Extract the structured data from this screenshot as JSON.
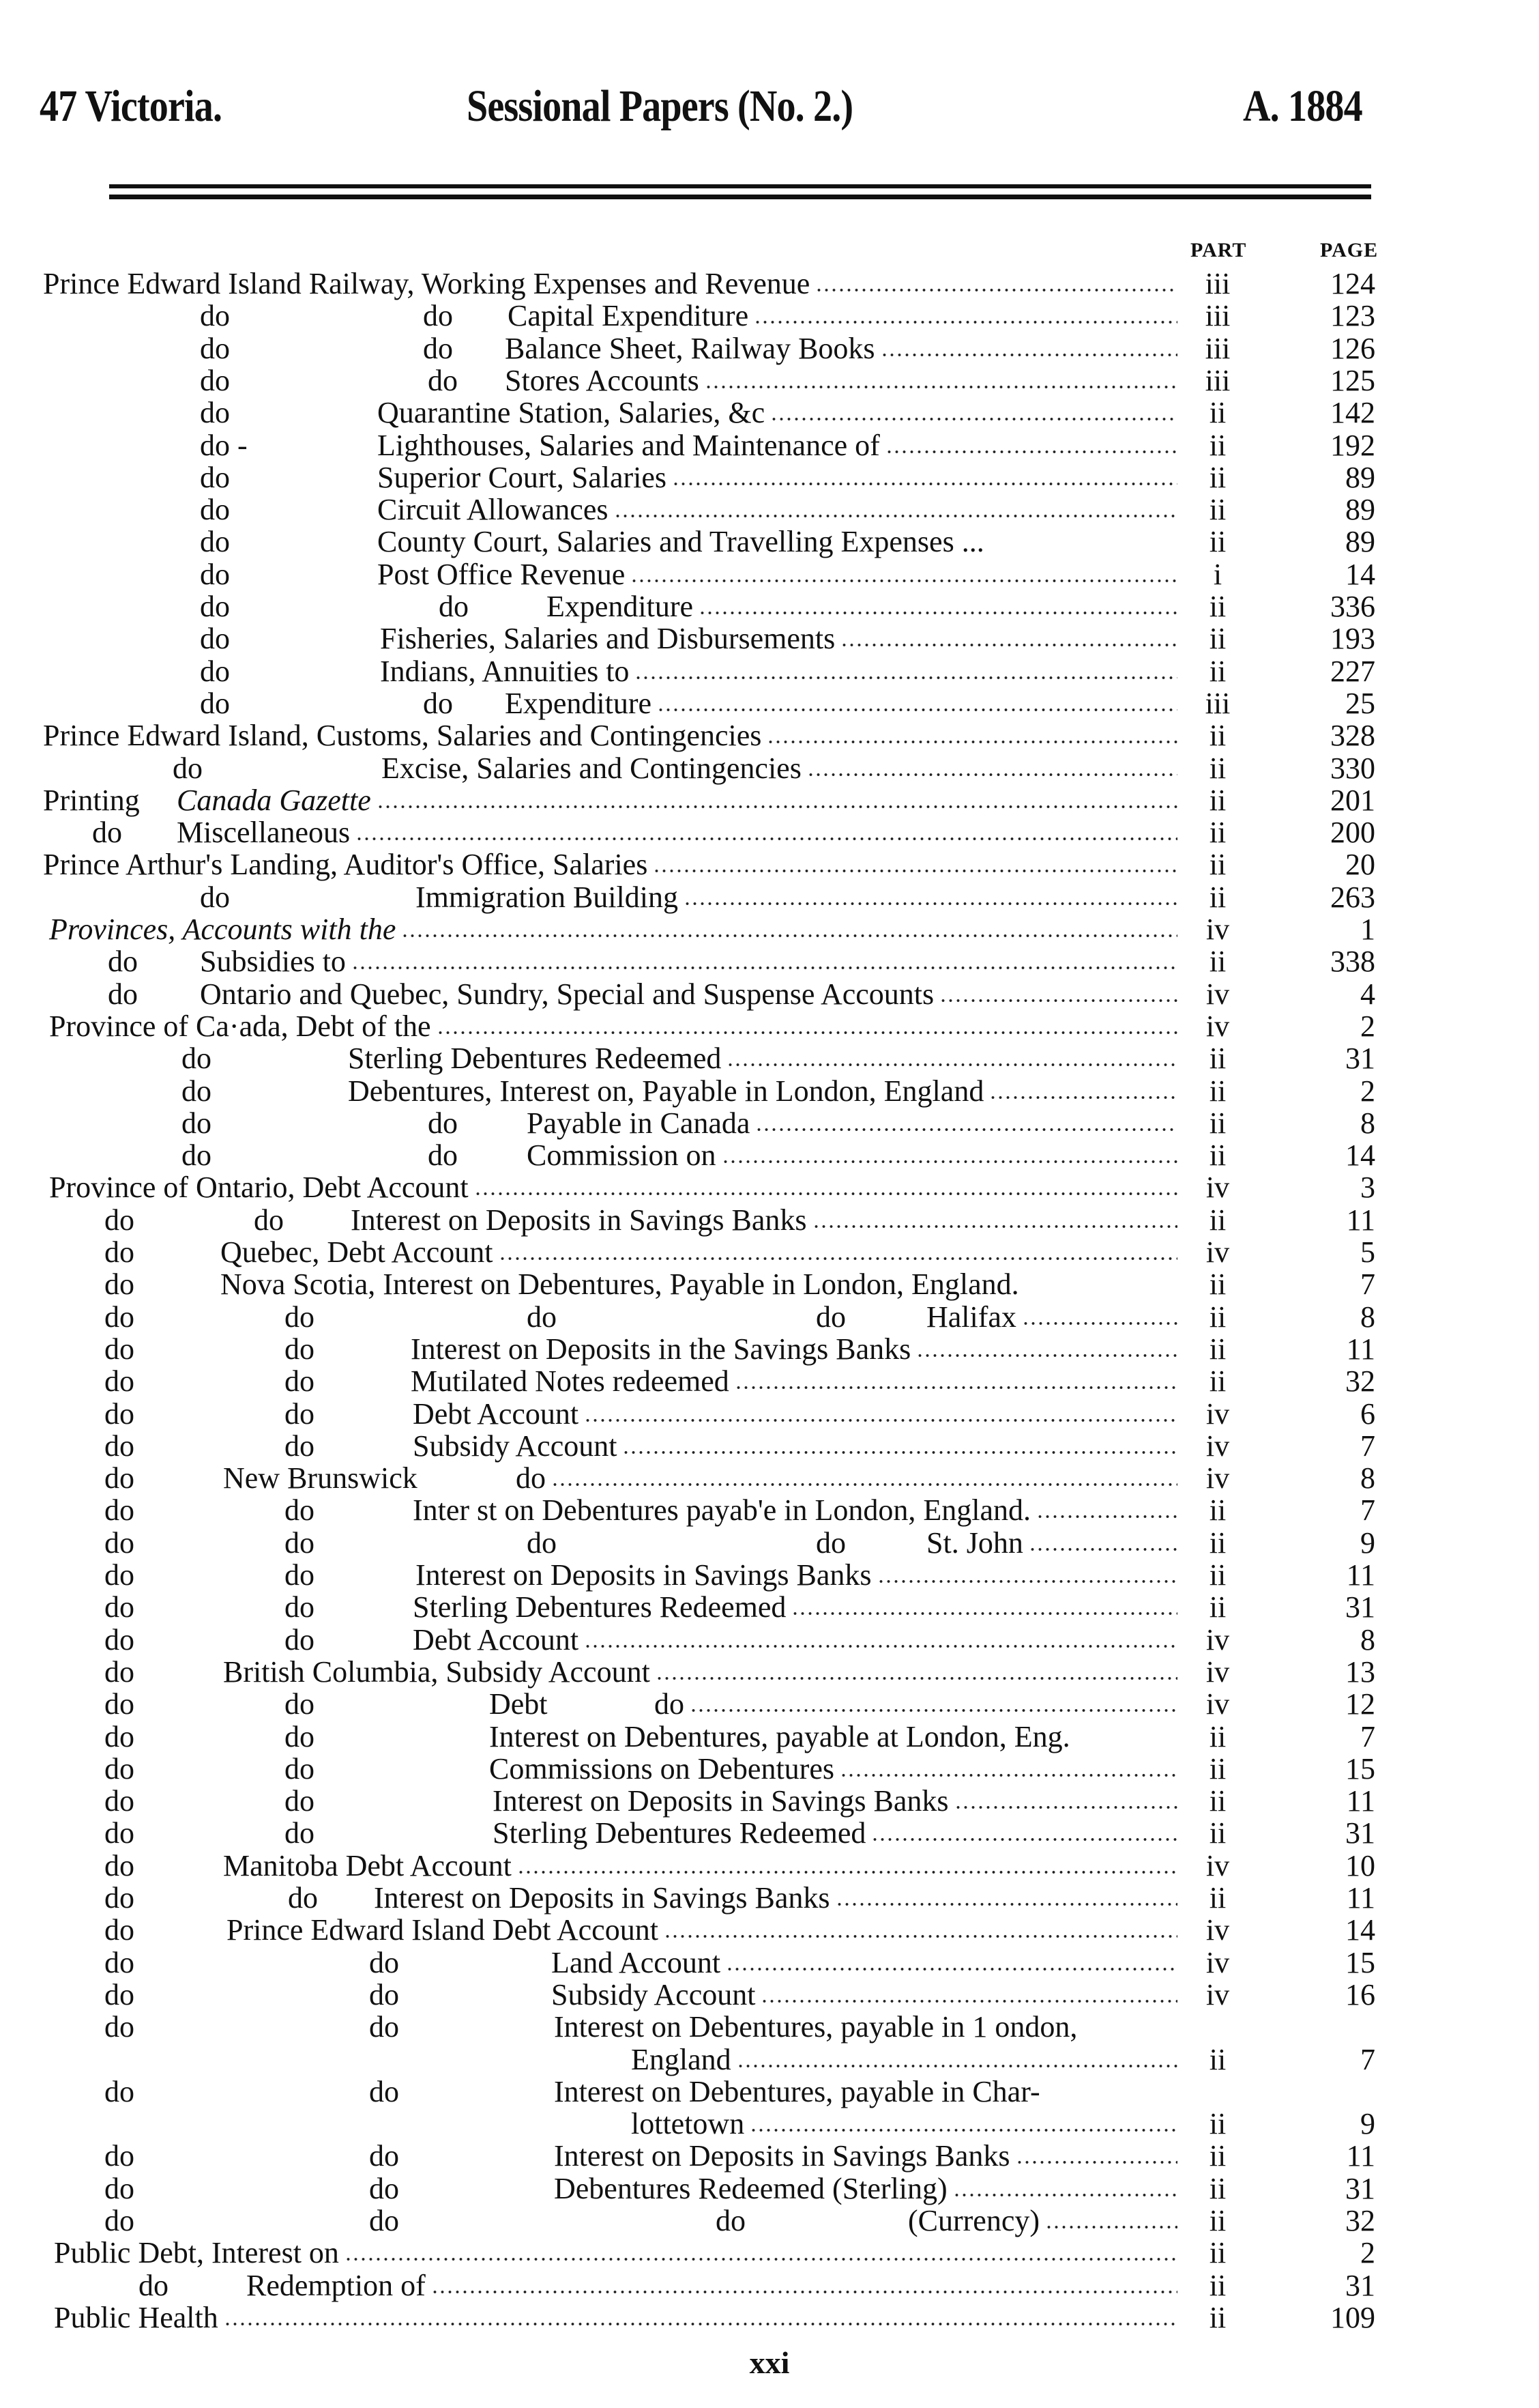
{
  "header": {
    "left": "47 Victoria.",
    "center": "Sessional Papers (No. 2.)",
    "right": "A. 1884"
  },
  "columns": {
    "part": "PART",
    "page": "PAGE"
  },
  "rows": [
    {
      "cols": [
        "Prince Edward Island Railway, Working Expenses and Revenue"
      ],
      "part": "iii",
      "page": "124"
    },
    {
      "cols": [
        "do",
        "do",
        "Capital Expenditure"
      ],
      "part": "iii",
      "page": "123"
    },
    {
      "cols": [
        "do",
        "do",
        "Balance Sheet, Railway Books"
      ],
      "part": "iii",
      "page": "126"
    },
    {
      "cols": [
        "do",
        "do",
        "Stores Accounts"
      ],
      "part": "iii",
      "page": "125"
    },
    {
      "cols": [
        "do",
        "Quarantine Station, Salaries, &c"
      ],
      "part": "ii",
      "page": "142"
    },
    {
      "cols": [
        "do -",
        "Lighthouses, Salaries and Maintenance of"
      ],
      "part": "ii",
      "page": "192"
    },
    {
      "cols": [
        "do",
        "Superior Court, Salaries"
      ],
      "part": "ii",
      "page": "89"
    },
    {
      "cols": [
        "do",
        "Circuit Allowances"
      ],
      "part": "ii",
      "page": "89"
    },
    {
      "cols": [
        "do",
        "County Court, Salaries and Travelling Expenses ..."
      ],
      "part": "ii",
      "page": "89"
    },
    {
      "cols": [
        "do",
        "Post Office Revenue"
      ],
      "part": "i",
      "page": "14"
    },
    {
      "cols": [
        "do",
        "do",
        "Expenditure"
      ],
      "part": "ii",
      "page": "336"
    },
    {
      "cols": [
        "do",
        "Fisheries, Salaries and Disbursements"
      ],
      "part": "ii",
      "page": "193"
    },
    {
      "cols": [
        "do",
        "Indians, Annuities to"
      ],
      "part": "ii",
      "page": "227"
    },
    {
      "cols": [
        "do",
        "do",
        "Expenditure"
      ],
      "part": "iii",
      "page": "25"
    },
    {
      "cols": [
        "Prince Edward Island, Customs, Salaries and Contingencies"
      ],
      "part": "ii",
      "page": "328"
    },
    {
      "cols": [
        "do",
        "Excise, Salaries and Contingencies"
      ],
      "part": "ii",
      "page": "330"
    },
    {
      "cols": [
        "Printing",
        "Canada Gazette"
      ],
      "part": "ii",
      "page": "201"
    },
    {
      "cols": [
        "do",
        "Miscellaneous"
      ],
      "part": "ii",
      "page": "200"
    },
    {
      "cols": [
        "Prince Arthur's Landing, Auditor's Office, Salaries"
      ],
      "part": "ii",
      "page": "20"
    },
    {
      "cols": [
        "do",
        "Immigration Building"
      ],
      "part": "ii",
      "page": "263"
    },
    {
      "cols": [
        "Provinces, Accounts with the"
      ],
      "part": "iv",
      "page": "1"
    },
    {
      "cols": [
        "do",
        "Subsidies to"
      ],
      "part": "ii",
      "page": "338"
    },
    {
      "cols": [
        "do",
        "Ontario and Quebec, Sundry, Special and Suspense Accounts"
      ],
      "part": "iv",
      "page": "4"
    },
    {
      "cols": [
        "Province of Ca·ada, Debt of the"
      ],
      "part": "iv",
      "page": "2"
    },
    {
      "cols": [
        "do",
        "Sterling Debentures Redeemed"
      ],
      "part": "ii",
      "page": "31"
    },
    {
      "cols": [
        "do",
        "Debentures, Interest on, Payable in London, England"
      ],
      "part": "ii",
      "page": "2"
    },
    {
      "cols": [
        "do",
        "do",
        "Payable in Canada"
      ],
      "part": "ii",
      "page": "8"
    },
    {
      "cols": [
        "do",
        "do",
        "Commission on"
      ],
      "part": "ii",
      "page": "14"
    },
    {
      "cols": [
        "Province of Ontario, Debt Account"
      ],
      "part": "iv",
      "page": "3"
    },
    {
      "cols": [
        "do",
        "do",
        "Interest on Deposits in Savings Banks"
      ],
      "part": "ii",
      "page": "11"
    },
    {
      "cols": [
        "do",
        "Quebec, Debt Account"
      ],
      "part": "iv",
      "page": "5"
    },
    {
      "cols": [
        "do",
        "Nova Scotia, Interest on Debentures, Payable in London, England."
      ],
      "part": "ii",
      "page": "7"
    },
    {
      "cols": [
        "do",
        "do",
        "do",
        "do",
        "Halifax"
      ],
      "part": "ii",
      "page": "8"
    },
    {
      "cols": [
        "do",
        "do",
        "Interest on Deposits in the Savings Banks"
      ],
      "part": "ii",
      "page": "11"
    },
    {
      "cols": [
        "do",
        "do",
        "Mutilated Notes redeemed"
      ],
      "part": "ii",
      "page": "32"
    },
    {
      "cols": [
        "do",
        "do",
        "Debt Account"
      ],
      "part": "iv",
      "page": "6"
    },
    {
      "cols": [
        "do",
        "do",
        "Subsidy Account"
      ],
      "part": "iv",
      "page": "7"
    },
    {
      "cols": [
        "do",
        "New Brunswick",
        "do"
      ],
      "part": "iv",
      "page": "8"
    },
    {
      "cols": [
        "do",
        "do",
        "Inter st on Debentures payab'e in London, England."
      ],
      "part": "ii",
      "page": "7"
    },
    {
      "cols": [
        "do",
        "do",
        "do",
        "do",
        "St. John"
      ],
      "part": "ii",
      "page": "9"
    },
    {
      "cols": [
        "do",
        "do",
        "Interest on Deposits in Savings Banks"
      ],
      "part": "ii",
      "page": "11"
    },
    {
      "cols": [
        "do",
        "do",
        "Sterling Debentures Redeemed"
      ],
      "part": "ii",
      "page": "31"
    },
    {
      "cols": [
        "do",
        "do",
        "Debt Account"
      ],
      "part": "iv",
      "page": "8"
    },
    {
      "cols": [
        "do",
        "British Columbia, Subsidy Account"
      ],
      "part": "iv",
      "page": "13"
    },
    {
      "cols": [
        "do",
        "do",
        "Debt",
        "do"
      ],
      "part": "iv",
      "page": "12"
    },
    {
      "cols": [
        "do",
        "do",
        "Interest on Debentures, payable at London, Eng."
      ],
      "part": "ii",
      "page": "7"
    },
    {
      "cols": [
        "do",
        "do",
        "Commissions on Debentures"
      ],
      "part": "ii",
      "page": "15"
    },
    {
      "cols": [
        "do",
        "do",
        "Interest on Deposits in Savings Banks"
      ],
      "part": "ii",
      "page": "11"
    },
    {
      "cols": [
        "do",
        "do",
        "Sterling Debentures Redeemed"
      ],
      "part": "ii",
      "page": "31"
    },
    {
      "cols": [
        "do",
        "Manitoba Debt Account"
      ],
      "part": "iv",
      "page": "10"
    },
    {
      "cols": [
        "do",
        "do",
        "Interest on Deposits in Savings Banks"
      ],
      "part": "ii",
      "page": "11"
    },
    {
      "cols": [
        "do",
        "Prince Edward Island Debt Account"
      ],
      "part": "iv",
      "page": "14"
    },
    {
      "cols": [
        "do",
        "do",
        "Land Account"
      ],
      "part": "iv",
      "page": "15"
    },
    {
      "cols": [
        "do",
        "do",
        "Subsidy Account"
      ],
      "part": "iv",
      "page": "16"
    },
    {
      "cols": [
        "do",
        "do",
        "Interest on Debentures, payable in 1 ondon,"
      ],
      "cont": "England",
      "part": "ii",
      "page": "7"
    },
    {
      "cols": [
        "do",
        "do",
        "Interest on Debentures, payable in Char-"
      ],
      "cont": "lottetown",
      "part": "ii",
      "page": "9"
    },
    {
      "cols": [
        "do",
        "do",
        "Interest on Deposits in Savings Banks"
      ],
      "part": "ii",
      "page": "11"
    },
    {
      "cols": [
        "do",
        "do",
        "Debentures Redeemed (Sterling)"
      ],
      "part": "ii",
      "page": "31"
    },
    {
      "cols": [
        "do",
        "do",
        "do",
        "(Currency)"
      ],
      "part": "ii",
      "page": "32"
    },
    {
      "cols": [
        "Public Debt, Interest on"
      ],
      "part": "ii",
      "page": "2"
    },
    {
      "cols": [
        "do",
        "Redemption of"
      ],
      "part": "ii",
      "page": "31"
    },
    {
      "cols": [
        "Public Health"
      ],
      "part": "ii",
      "page": "109"
    }
  ],
  "footer": {
    "page_number": "xxi"
  }
}
